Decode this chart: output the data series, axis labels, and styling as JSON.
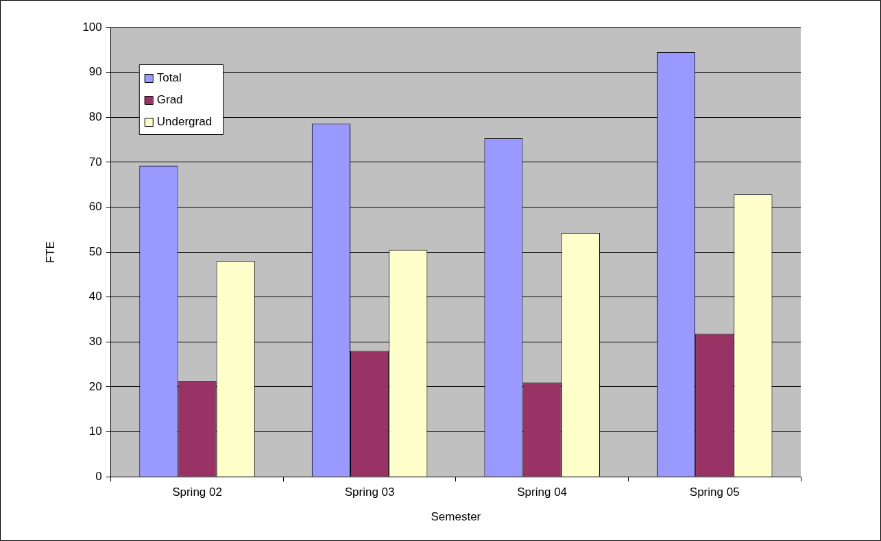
{
  "chart_data": {
    "type": "bar",
    "xlabel": "Semester",
    "ylabel": "FTE",
    "categories": [
      "Spring 02",
      "Spring 03",
      "Spring 04",
      "Spring 05"
    ],
    "series": [
      {
        "name": "Total",
        "color": "#9999ff",
        "values": [
          69.2,
          78.6,
          75.3,
          94.5
        ]
      },
      {
        "name": "Grad",
        "color": "#993366",
        "values": [
          21.2,
          28.0,
          21.0,
          31.8
        ]
      },
      {
        "name": "Undergrad",
        "color": "#ffffcc",
        "values": [
          48.0,
          50.5,
          54.3,
          62.8
        ]
      }
    ],
    "ylim": [
      0,
      100
    ],
    "yticks": [
      0,
      10,
      20,
      30,
      40,
      50,
      60,
      70,
      80,
      90,
      100
    ],
    "grid": "y",
    "legend": "top left"
  }
}
